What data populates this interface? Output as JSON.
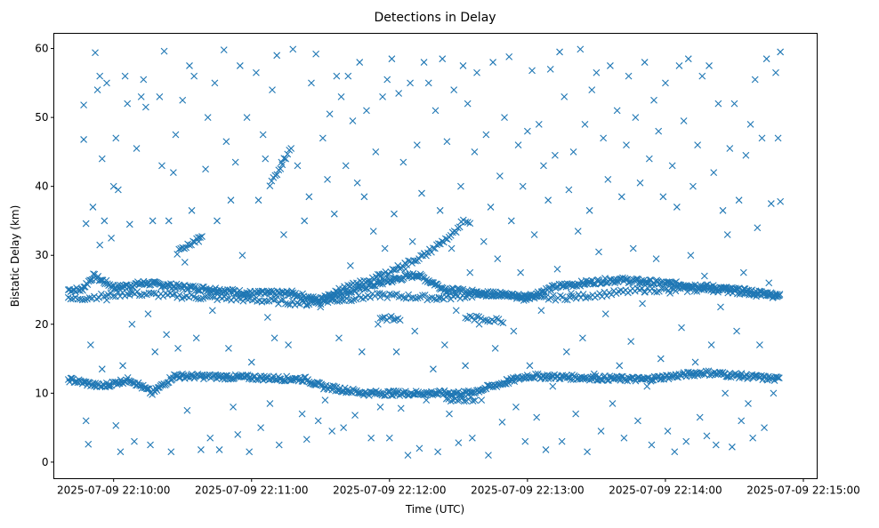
{
  "chart_data": {
    "type": "scatter",
    "title": "Detections in Delay",
    "xlabel": "Time (UTC)",
    "ylabel": "Bistatic Delay (km)",
    "marker": "x",
    "color": "#1f77b4",
    "x_unit": "seconds after 2025-07-09 22:10:00",
    "xlim": [
      -26,
      306
    ],
    "ylim": [
      -2.4,
      62.2
    ],
    "xticks": [
      {
        "value": 0,
        "label": "2025-07-09 22:10:00"
      },
      {
        "value": 60,
        "label": "2025-07-09 22:11:00"
      },
      {
        "value": 120,
        "label": "2025-07-09 22:12:00"
      },
      {
        "value": 180,
        "label": "2025-07-09 22:13:00"
      },
      {
        "value": 240,
        "label": "2025-07-09 22:14:00"
      },
      {
        "value": 300,
        "label": "2025-07-09 22:15:00"
      }
    ],
    "yticks": [
      0,
      10,
      20,
      30,
      40,
      50,
      60
    ],
    "grid": false,
    "tracks": [
      {
        "name": "track-25km",
        "step": 0.8,
        "vertices": [
          [
            -12,
            25
          ],
          [
            -3,
            25
          ],
          [
            5,
            27
          ],
          [
            20,
            25.3
          ],
          [
            40,
            26
          ],
          [
            60,
            25.5
          ],
          [
            90,
            25
          ],
          [
            110,
            24.5
          ],
          [
            140,
            24.5
          ],
          [
            158,
            23.5
          ],
          [
            175,
            24.5
          ],
          [
            200,
            26
          ],
          [
            225,
            27.2
          ],
          [
            245,
            25
          ],
          [
            270,
            24.5
          ],
          [
            300,
            24
          ],
          [
            320,
            25.5
          ],
          [
            360,
            26.5
          ],
          [
            390,
            26
          ],
          [
            420,
            25.5
          ],
          [
            460,
            24.5
          ],
          [
            472,
            24.2
          ]
        ]
      },
      {
        "name": "track-24km",
        "step": 1.6,
        "vertices": [
          [
            -12,
            23.6
          ],
          [
            30,
            24.5
          ],
          [
            70,
            24
          ],
          [
            110,
            23.6
          ],
          [
            150,
            23
          ],
          [
            200,
            24.2
          ],
          [
            240,
            23.8
          ],
          [
            280,
            24.5
          ],
          [
            300,
            23.7
          ],
          [
            330,
            23.9
          ],
          [
            380,
            25
          ],
          [
            430,
            25
          ],
          [
            472,
            24
          ]
        ]
      },
      {
        "name": "track-12km",
        "step": 0.8,
        "vertices": [
          [
            -12,
            12
          ],
          [
            10,
            11
          ],
          [
            30,
            12
          ],
          [
            45,
            10
          ],
          [
            60,
            12.5
          ],
          [
            110,
            12.3
          ],
          [
            150,
            12
          ],
          [
            160,
            11
          ],
          [
            190,
            10
          ],
          [
            230,
            10
          ],
          [
            260,
            10
          ],
          [
            300,
            12.5
          ],
          [
            380,
            12
          ],
          [
            420,
            13
          ],
          [
            472,
            12
          ]
        ]
      },
      {
        "name": "track-rising-a",
        "step": 1.2,
        "vertices": [
          [
            160,
            24
          ],
          [
            200,
            27
          ],
          [
            230,
            30
          ],
          [
            255,
            34
          ]
        ]
      },
      {
        "name": "track-rising-b",
        "step": 1.2,
        "vertices": [
          [
            125,
            40
          ],
          [
            140,
            46
          ]
        ]
      },
      {
        "name": "track-rising-c",
        "step": 1.2,
        "vertices": [
          [
            62,
            30.5
          ],
          [
            80,
            33
          ]
        ]
      },
      {
        "name": "track-20km-a",
        "step": 1.5,
        "vertices": [
          [
            200,
            21
          ],
          [
            215,
            20.6
          ]
        ]
      },
      {
        "name": "track-20km-b",
        "step": 1.5,
        "vertices": [
          [
            258,
            21
          ],
          [
            285,
            20.5
          ]
        ]
      },
      {
        "name": "track-9km",
        "step": 1.5,
        "vertices": [
          [
            245,
            9.2
          ],
          [
            265,
            9.1
          ]
        ]
      },
      {
        "name": "track-35km",
        "step": 1.5,
        "vertices": [
          [
            255,
            35
          ],
          [
            262,
            34.6
          ]
        ]
      }
    ],
    "points": [
      [
        -13,
        51.8
      ],
      [
        -13,
        46.8
      ],
      [
        -12,
        34.6
      ],
      [
        -12,
        6
      ],
      [
        -11,
        2.6
      ],
      [
        -10,
        17
      ],
      [
        -9,
        37
      ],
      [
        -8,
        59.4
      ],
      [
        -7,
        54
      ],
      [
        -6,
        56
      ],
      [
        -6,
        31.5
      ],
      [
        -5,
        44
      ],
      [
        -5,
        13.5
      ],
      [
        -4,
        35
      ],
      [
        -3,
        55
      ],
      [
        -3,
        23.5
      ],
      [
        -2,
        11
      ],
      [
        -1,
        32.5
      ],
      [
        0,
        40
      ],
      [
        1,
        47
      ],
      [
        1,
        5.3
      ],
      [
        2,
        39.5
      ],
      [
        3,
        1.5
      ],
      [
        4,
        14
      ],
      [
        5,
        56
      ],
      [
        6,
        52
      ],
      [
        7,
        34.5
      ],
      [
        8,
        20
      ],
      [
        9,
        3
      ],
      [
        10,
        45.5
      ],
      [
        12,
        53
      ],
      [
        13,
        55.5
      ],
      [
        14,
        51.5
      ],
      [
        15,
        21.5
      ],
      [
        16,
        2.5
      ],
      [
        17,
        35
      ],
      [
        18,
        16
      ],
      [
        20,
        53
      ],
      [
        21,
        43
      ],
      [
        22,
        59.6
      ],
      [
        23,
        18.5
      ],
      [
        24,
        35
      ],
      [
        25,
        1.5
      ],
      [
        26,
        42
      ],
      [
        27,
        47.5
      ],
      [
        28,
        16.5
      ],
      [
        30,
        52.5
      ],
      [
        31,
        29
      ],
      [
        32,
        7.5
      ],
      [
        33,
        57.5
      ],
      [
        34,
        36.5
      ],
      [
        35,
        56
      ],
      [
        36,
        18
      ],
      [
        37,
        32
      ],
      [
        38,
        1.8
      ],
      [
        40,
        42.5
      ],
      [
        41,
        50
      ],
      [
        42,
        3.5
      ],
      [
        43,
        22
      ],
      [
        44,
        55
      ],
      [
        45,
        35
      ],
      [
        46,
        1.8
      ],
      [
        48,
        59.8
      ],
      [
        49,
        46.5
      ],
      [
        50,
        16.5
      ],
      [
        51,
        38
      ],
      [
        52,
        8
      ],
      [
        53,
        43.5
      ],
      [
        54,
        4
      ],
      [
        55,
        57.5
      ],
      [
        56,
        30
      ],
      [
        58,
        50
      ],
      [
        59,
        1.5
      ],
      [
        60,
        14.5
      ],
      [
        62,
        56.5
      ],
      [
        63,
        38
      ],
      [
        64,
        5
      ],
      [
        65,
        47.5
      ],
      [
        66,
        44
      ],
      [
        67,
        21
      ],
      [
        68,
        8.5
      ],
      [
        69,
        54
      ],
      [
        70,
        18
      ],
      [
        71,
        59
      ],
      [
        72,
        2.5
      ],
      [
        73,
        43.5
      ],
      [
        74,
        33
      ],
      [
        76,
        17
      ],
      [
        78,
        59.9
      ],
      [
        80,
        43
      ],
      [
        82,
        7
      ],
      [
        83,
        35
      ],
      [
        84,
        3.3
      ],
      [
        85,
        38.5
      ],
      [
        86,
        55
      ],
      [
        88,
        59.2
      ],
      [
        89,
        6
      ],
      [
        90,
        22.5
      ],
      [
        91,
        47
      ],
      [
        92,
        9
      ],
      [
        93,
        41
      ],
      [
        94,
        50.5
      ],
      [
        95,
        4.5
      ],
      [
        96,
        36
      ],
      [
        97,
        56
      ],
      [
        98,
        18
      ],
      [
        99,
        53
      ],
      [
        100,
        5
      ],
      [
        101,
        43
      ],
      [
        102,
        56
      ],
      [
        103,
        28.5
      ],
      [
        104,
        49.5
      ],
      [
        105,
        6.8
      ],
      [
        106,
        40.5
      ],
      [
        107,
        58
      ],
      [
        108,
        16
      ],
      [
        109,
        38.5
      ],
      [
        110,
        51
      ],
      [
        112,
        3.5
      ],
      [
        113,
        33.5
      ],
      [
        114,
        45
      ],
      [
        115,
        20
      ],
      [
        116,
        8
      ],
      [
        117,
        53
      ],
      [
        118,
        31
      ],
      [
        119,
        55.5
      ],
      [
        120,
        3.5
      ],
      [
        121,
        58.5
      ],
      [
        122,
        36
      ],
      [
        123,
        16
      ],
      [
        124,
        53.5
      ],
      [
        125,
        7.8
      ],
      [
        126,
        43.5
      ],
      [
        127,
        28
      ],
      [
        128,
        1
      ],
      [
        129,
        55
      ],
      [
        130,
        32
      ],
      [
        131,
        19
      ],
      [
        132,
        46
      ],
      [
        133,
        2
      ],
      [
        134,
        39
      ],
      [
        135,
        58
      ],
      [
        136,
        9
      ],
      [
        137,
        55
      ],
      [
        138,
        26
      ],
      [
        139,
        13.5
      ],
      [
        140,
        51
      ],
      [
        141,
        1.5
      ],
      [
        142,
        36.5
      ],
      [
        143,
        58.5
      ],
      [
        144,
        17
      ],
      [
        145,
        46.5
      ],
      [
        146,
        7
      ],
      [
        147,
        31
      ],
      [
        148,
        54
      ],
      [
        149,
        22
      ],
      [
        150,
        2.8
      ],
      [
        151,
        40
      ],
      [
        152,
        57.5
      ],
      [
        153,
        14
      ],
      [
        154,
        52
      ],
      [
        155,
        27.5
      ],
      [
        156,
        3.5
      ],
      [
        157,
        45
      ],
      [
        158,
        56.5
      ],
      [
        159,
        20
      ],
      [
        160,
        9
      ],
      [
        161,
        32
      ],
      [
        162,
        47.5
      ],
      [
        163,
        1
      ],
      [
        164,
        37
      ],
      [
        165,
        58
      ],
      [
        166,
        16.5
      ],
      [
        167,
        29.5
      ],
      [
        168,
        41.5
      ],
      [
        169,
        5.8
      ],
      [
        170,
        50
      ],
      [
        171,
        12
      ],
      [
        172,
        58.8
      ],
      [
        173,
        35
      ],
      [
        174,
        19
      ],
      [
        175,
        8
      ],
      [
        176,
        46
      ],
      [
        177,
        27.5
      ],
      [
        178,
        40
      ],
      [
        179,
        3
      ],
      [
        180,
        48
      ],
      [
        181,
        14
      ],
      [
        182,
        56.8
      ],
      [
        183,
        33
      ],
      [
        184,
        6.5
      ],
      [
        185,
        49
      ],
      [
        186,
        22
      ],
      [
        187,
        43
      ],
      [
        188,
        1.8
      ],
      [
        189,
        38
      ],
      [
        190,
        57
      ],
      [
        191,
        11
      ],
      [
        192,
        44.5
      ],
      [
        193,
        28
      ],
      [
        194,
        59.5
      ],
      [
        195,
        3
      ],
      [
        196,
        53
      ],
      [
        197,
        16
      ],
      [
        198,
        39.5
      ],
      [
        199,
        24.5
      ],
      [
        200,
        45
      ],
      [
        201,
        7
      ],
      [
        202,
        33.5
      ],
      [
        203,
        59.9
      ],
      [
        204,
        18
      ],
      [
        205,
        49
      ],
      [
        206,
        1.5
      ],
      [
        207,
        36.5
      ],
      [
        208,
        54
      ],
      [
        209,
        12.8
      ],
      [
        210,
        56.5
      ],
      [
        211,
        30.5
      ],
      [
        212,
        4.5
      ],
      [
        213,
        47
      ],
      [
        214,
        21.5
      ],
      [
        215,
        41
      ],
      [
        216,
        57.5
      ],
      [
        217,
        8.5
      ],
      [
        218,
        26
      ],
      [
        219,
        51
      ],
      [
        220,
        14
      ],
      [
        221,
        38.5
      ],
      [
        222,
        3.5
      ],
      [
        223,
        46
      ],
      [
        224,
        56
      ],
      [
        225,
        17.5
      ],
      [
        226,
        31
      ],
      [
        227,
        50
      ],
      [
        228,
        6
      ],
      [
        229,
        40.5
      ],
      [
        230,
        23
      ],
      [
        231,
        58
      ],
      [
        232,
        11
      ],
      [
        233,
        44
      ],
      [
        234,
        2.5
      ],
      [
        235,
        52.5
      ],
      [
        236,
        29.5
      ],
      [
        237,
        48
      ],
      [
        238,
        15
      ],
      [
        239,
        38.5
      ],
      [
        240,
        55
      ],
      [
        241,
        4.5
      ],
      [
        242,
        24.5
      ],
      [
        243,
        43
      ],
      [
        244,
        1.5
      ],
      [
        245,
        37
      ],
      [
        246,
        57.5
      ],
      [
        247,
        19.5
      ],
      [
        248,
        49.5
      ],
      [
        249,
        3
      ],
      [
        250,
        58.5
      ],
      [
        251,
        30
      ],
      [
        252,
        40
      ],
      [
        253,
        14.5
      ],
      [
        254,
        46
      ],
      [
        255,
        6.5
      ],
      [
        256,
        56
      ],
      [
        257,
        27
      ],
      [
        258,
        3.8
      ],
      [
        259,
        57.5
      ],
      [
        260,
        17
      ],
      [
        261,
        42
      ],
      [
        262,
        2.5
      ],
      [
        263,
        52
      ],
      [
        264,
        22.5
      ],
      [
        265,
        36.5
      ],
      [
        266,
        10
      ],
      [
        267,
        33
      ],
      [
        268,
        45.5
      ],
      [
        269,
        2.2
      ],
      [
        270,
        52
      ],
      [
        271,
        19
      ],
      [
        272,
        38
      ],
      [
        273,
        6
      ],
      [
        274,
        27.5
      ],
      [
        275,
        44.5
      ],
      [
        276,
        8.5
      ],
      [
        277,
        49
      ],
      [
        278,
        3.5
      ],
      [
        279,
        55.5
      ],
      [
        280,
        34
      ],
      [
        281,
        17
      ],
      [
        282,
        47
      ],
      [
        283,
        5
      ],
      [
        284,
        58.5
      ],
      [
        285,
        26
      ],
      [
        286,
        37.5
      ],
      [
        287,
        10
      ],
      [
        288,
        56.5
      ],
      [
        289,
        47
      ],
      [
        290,
        59.5
      ],
      [
        290,
        37.8
      ]
    ]
  }
}
